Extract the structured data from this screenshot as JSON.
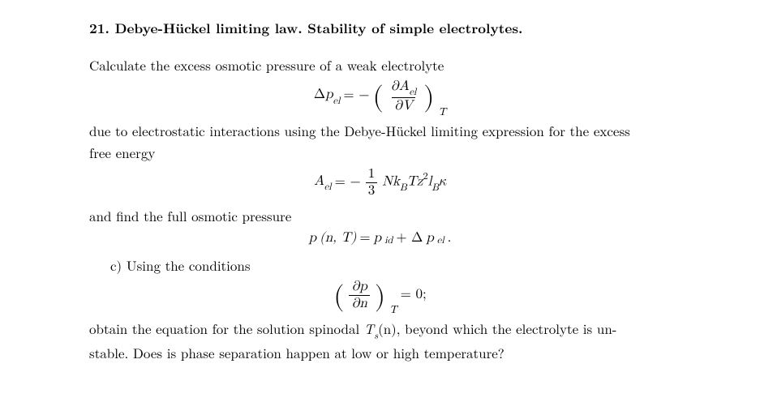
{
  "title": "21. Debye-Hückel limiting law. Stability of simple electrolytes.",
  "p1": "Calculate the excess osmotic pressure of a weak electrolyte",
  "p2a": "due to electrostatic interactions using the Debye-Hückel limiting expression for the excess",
  "p2b": "free energy",
  "p3": "and find the full osmotic pressure",
  "pc": "c) Using the conditions",
  "p4a": "obtain the equation for the solution spinodal ",
  "p4_tsn": "T",
  "p4_sub": "s",
  "p4_arg": "(n)",
  "p4b": ", beyond which the electrolyte is un-",
  "p4c": "stable. Does is phase separation happen at low or high temperature?",
  "eq1": {
    "lhs_delta": "Δ",
    "lhs_p": "p",
    "lhs_el": "el",
    "eq": " = − ",
    "d": "∂",
    "A": "A",
    "el": "el",
    "V": "V",
    "T": "T"
  },
  "eq2": {
    "A": "A",
    "el": "el",
    "eq": " = −",
    "one": "1",
    "three": "3",
    "N": "N",
    "kB": "k",
    "B": "B",
    "T": "T",
    "z": "z",
    "two": "2",
    "l": "l",
    "BK": "B",
    "kappa": "κ"
  },
  "eq3": {
    "p": "p",
    "args": "(n, T)",
    "eq": " = ",
    "pid_p": "p",
    "pid_id": "id",
    "plus": " + Δ",
    "pel_p": "p",
    "pel_el": "el",
    "dot": "."
  },
  "eq4": {
    "d": "∂",
    "p": "p",
    "n": "n",
    "T": "T",
    "rhs": " = 0;"
  }
}
